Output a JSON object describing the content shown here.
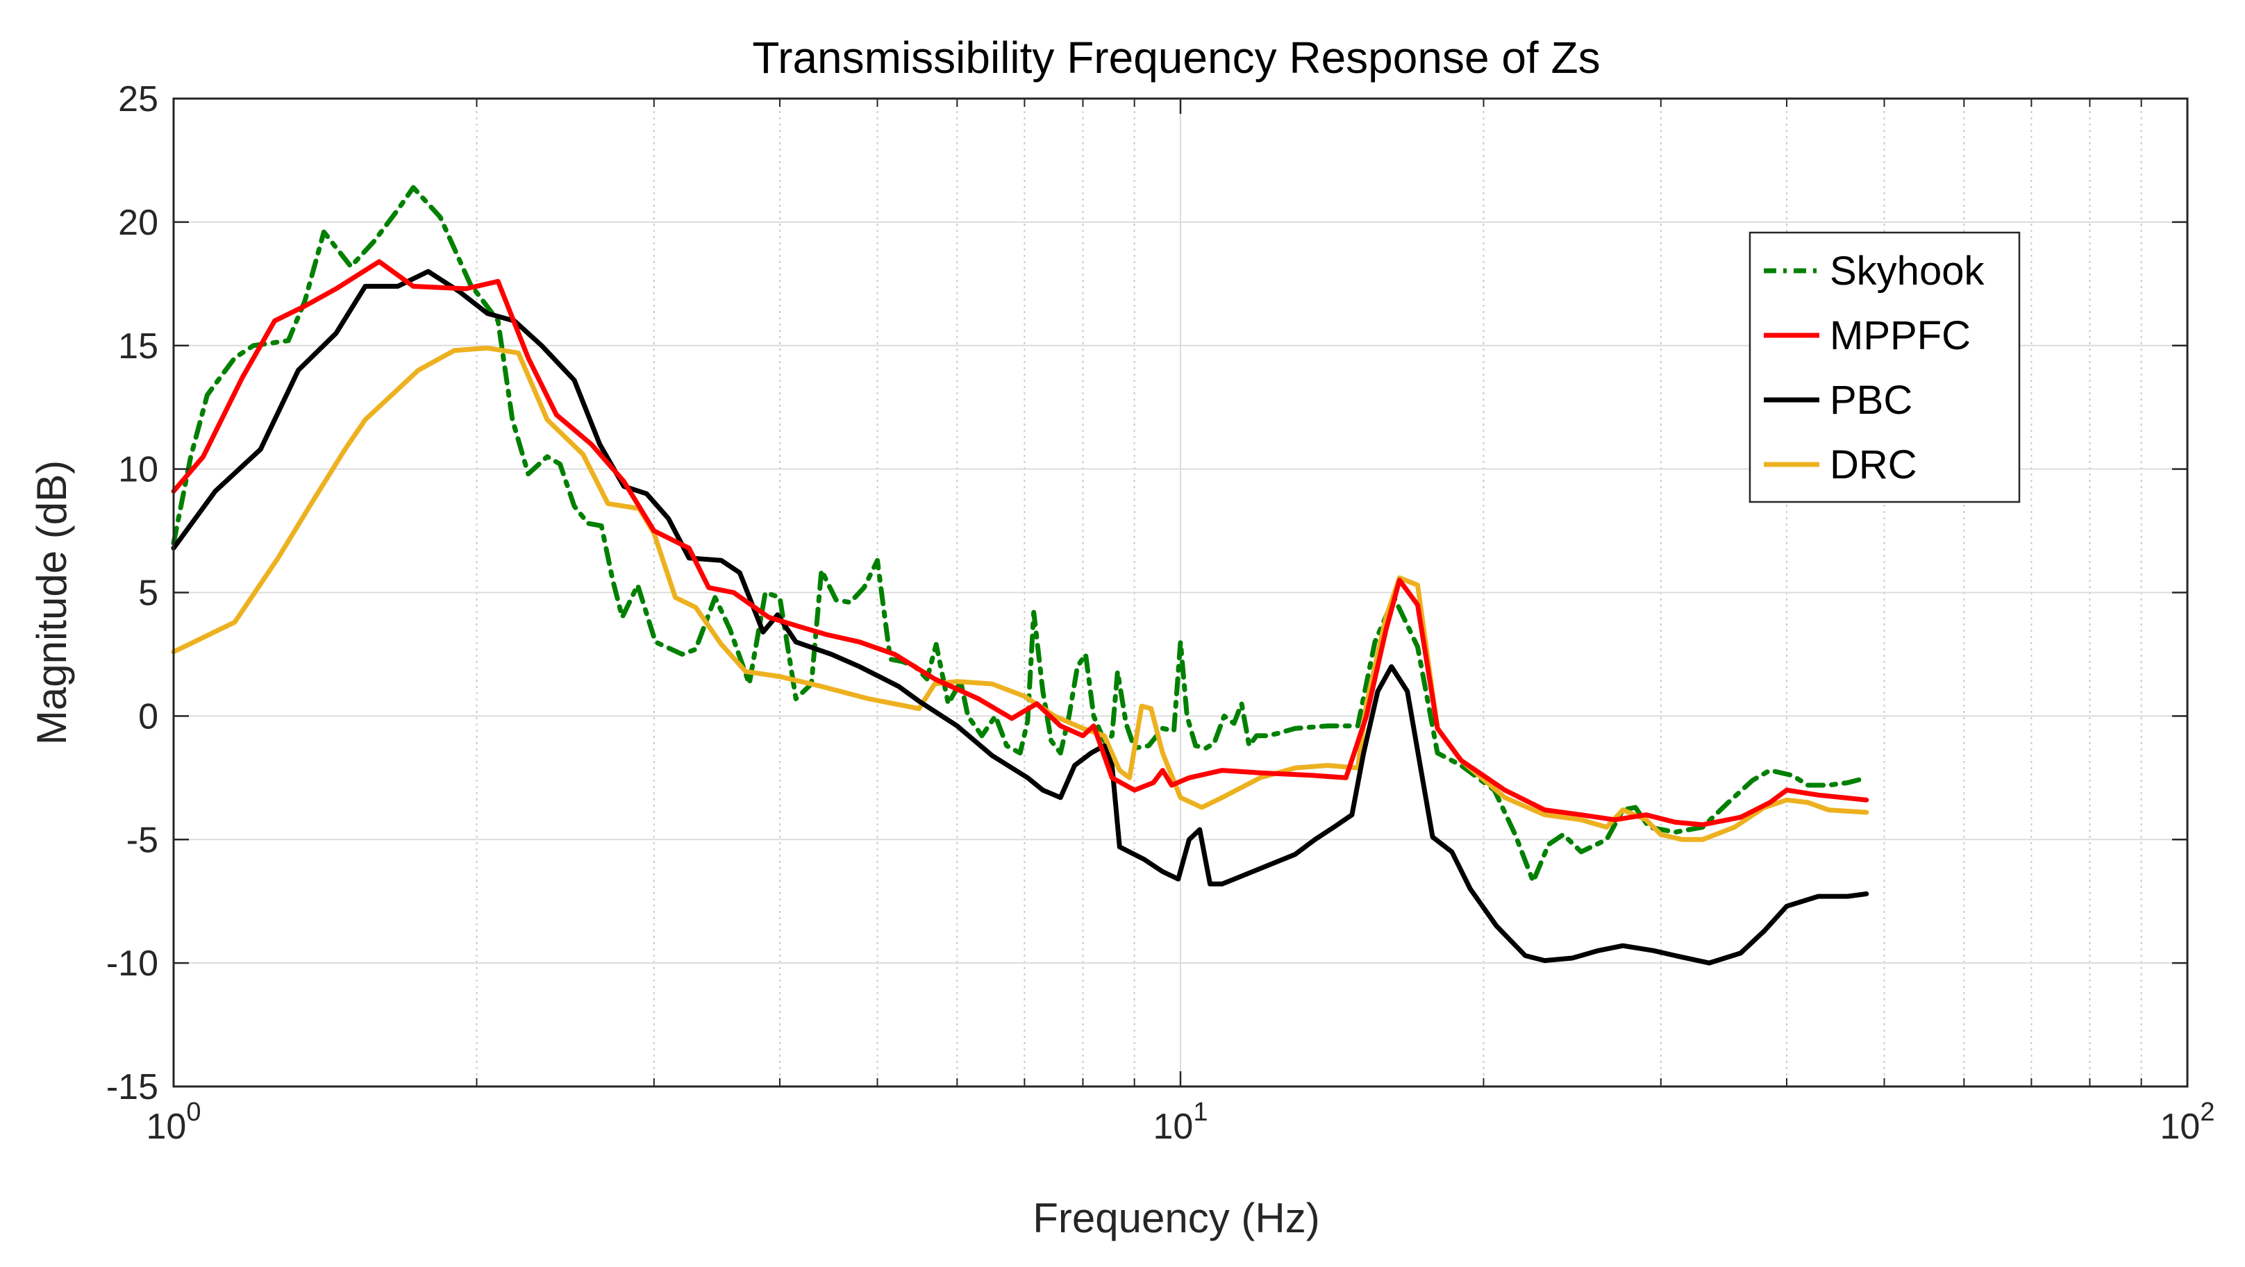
{
  "chart_data": {
    "type": "line",
    "title": "Transmissibility Frequency Response of Zs",
    "xlabel": "Frequency (Hz)",
    "ylabel": "Magnitude (dB)",
    "xscale": "log",
    "xlim": [
      1,
      100
    ],
    "ylim": [
      -15,
      25
    ],
    "grid": true,
    "legend_position": "top-right",
    "x_ticks": [
      {
        "value": 1,
        "base": "10",
        "exp": "0"
      },
      {
        "value": 10,
        "base": "10",
        "exp": "1"
      },
      {
        "value": 100,
        "base": "10",
        "exp": "2"
      }
    ],
    "y_ticks": [
      {
        "value": 25,
        "label": "25"
      },
      {
        "value": 20,
        "label": "20"
      },
      {
        "value": 15,
        "label": "15"
      },
      {
        "value": 10,
        "label": "10"
      },
      {
        "value": 5,
        "label": "5"
      },
      {
        "value": 0,
        "label": "0"
      },
      {
        "value": -5,
        "label": "-5"
      },
      {
        "value": -10,
        "label": "-10"
      },
      {
        "value": -15,
        "label": "-15"
      }
    ],
    "series": [
      {
        "name": "Skyhook",
        "color": "#008000",
        "style": "dashdot",
        "points": [
          [
            1.0,
            7.0
          ],
          [
            1.04,
            10.5
          ],
          [
            1.08,
            13.0
          ],
          [
            1.15,
            14.5
          ],
          [
            1.2,
            15.0
          ],
          [
            1.3,
            15.2
          ],
          [
            1.35,
            16.8
          ],
          [
            1.41,
            19.6
          ],
          [
            1.5,
            18.2
          ],
          [
            1.58,
            19.2
          ],
          [
            1.67,
            20.5
          ],
          [
            1.73,
            21.4
          ],
          [
            1.84,
            20.2
          ],
          [
            1.97,
            17.5
          ],
          [
            2.1,
            16.0
          ],
          [
            2.17,
            12.0
          ],
          [
            2.25,
            9.8
          ],
          [
            2.35,
            10.5
          ],
          [
            2.42,
            10.2
          ],
          [
            2.5,
            8.5
          ],
          [
            2.58,
            7.8
          ],
          [
            2.66,
            7.7
          ],
          [
            2.73,
            5.5
          ],
          [
            2.79,
            4.0
          ],
          [
            2.89,
            5.3
          ],
          [
            3.01,
            3.0
          ],
          [
            3.2,
            2.5
          ],
          [
            3.3,
            2.7
          ],
          [
            3.45,
            4.8
          ],
          [
            3.57,
            3.5
          ],
          [
            3.73,
            1.3
          ],
          [
            3.87,
            5.0
          ],
          [
            4.0,
            4.8
          ],
          [
            4.15,
            0.7
          ],
          [
            4.3,
            1.3
          ],
          [
            4.4,
            5.9
          ],
          [
            4.55,
            4.7
          ],
          [
            4.7,
            4.6
          ],
          [
            4.85,
            5.2
          ],
          [
            5.0,
            6.3
          ],
          [
            5.15,
            2.3
          ],
          [
            5.3,
            2.2
          ],
          [
            5.45,
            2.0
          ],
          [
            5.6,
            1.5
          ],
          [
            5.72,
            2.9
          ],
          [
            5.88,
            0.5
          ],
          [
            6.05,
            1.4
          ],
          [
            6.15,
            0.0
          ],
          [
            6.35,
            -0.8
          ],
          [
            6.55,
            0.0
          ],
          [
            6.72,
            -1.2
          ],
          [
            6.93,
            -1.5
          ],
          [
            7.05,
            -0.2
          ],
          [
            7.15,
            4.2
          ],
          [
            7.3,
            1.0
          ],
          [
            7.44,
            -1.0
          ],
          [
            7.6,
            -1.5
          ],
          [
            7.75,
            0.0
          ],
          [
            7.9,
            2.0
          ],
          [
            8.05,
            2.5
          ],
          [
            8.2,
            0.0
          ],
          [
            8.4,
            -1.0
          ],
          [
            8.55,
            -0.8
          ],
          [
            8.66,
            1.8
          ],
          [
            8.83,
            -0.3
          ],
          [
            9.0,
            -1.3
          ],
          [
            9.3,
            -1.2
          ],
          [
            9.6,
            -0.5
          ],
          [
            9.85,
            -0.6
          ],
          [
            10.0,
            3.0
          ],
          [
            10.15,
            0.0
          ],
          [
            10.35,
            -1.2
          ],
          [
            10.6,
            -1.3
          ],
          [
            10.8,
            -1.1
          ],
          [
            11.05,
            0.0
          ],
          [
            11.3,
            -0.3
          ],
          [
            11.5,
            0.5
          ],
          [
            11.7,
            -1.2
          ],
          [
            11.9,
            -0.8
          ],
          [
            12.2,
            -0.8
          ],
          [
            12.5,
            -0.7
          ],
          [
            13.0,
            -0.5
          ],
          [
            14.0,
            -0.4
          ],
          [
            15.0,
            -0.4
          ],
          [
            15.6,
            3.0
          ],
          [
            16.3,
            4.8
          ],
          [
            17.2,
            2.8
          ],
          [
            18.0,
            -1.5
          ],
          [
            19.0,
            -2.0
          ],
          [
            20.5,
            -3.0
          ],
          [
            21.5,
            -4.8
          ],
          [
            22.4,
            -6.7
          ],
          [
            23.2,
            -5.2
          ],
          [
            24.0,
            -4.8
          ],
          [
            25.0,
            -5.5
          ],
          [
            26.5,
            -5.0
          ],
          [
            27.5,
            -3.8
          ],
          [
            28.3,
            -3.7
          ],
          [
            29.2,
            -4.5
          ],
          [
            31.0,
            -4.7
          ],
          [
            33.0,
            -4.5
          ],
          [
            35.0,
            -3.5
          ],
          [
            37.0,
            -2.6
          ],
          [
            38.5,
            -2.2
          ],
          [
            40.5,
            -2.4
          ],
          [
            42.0,
            -2.8
          ],
          [
            44.0,
            -2.8
          ],
          [
            46.0,
            -2.7
          ],
          [
            48.0,
            -2.5
          ]
        ]
      },
      {
        "name": "MPPFC",
        "color": "#ff0000",
        "style": "solid",
        "points": [
          [
            1.0,
            9.1
          ],
          [
            1.07,
            10.5
          ],
          [
            1.17,
            13.7
          ],
          [
            1.26,
            16.0
          ],
          [
            1.35,
            16.6
          ],
          [
            1.45,
            17.3
          ],
          [
            1.6,
            18.4
          ],
          [
            1.73,
            17.4
          ],
          [
            1.95,
            17.3
          ],
          [
            2.1,
            17.6
          ],
          [
            2.25,
            14.5
          ],
          [
            2.4,
            12.2
          ],
          [
            2.6,
            11.0
          ],
          [
            2.8,
            9.5
          ],
          [
            3.0,
            7.5
          ],
          [
            3.25,
            6.8
          ],
          [
            3.4,
            5.2
          ],
          [
            3.6,
            5.0
          ],
          [
            3.9,
            4.0
          ],
          [
            4.2,
            3.6
          ],
          [
            4.45,
            3.3
          ],
          [
            4.8,
            3.0
          ],
          [
            5.2,
            2.5
          ],
          [
            5.7,
            1.5
          ],
          [
            6.3,
            0.7
          ],
          [
            6.8,
            -0.1
          ],
          [
            7.2,
            0.5
          ],
          [
            7.6,
            -0.4
          ],
          [
            8.0,
            -0.8
          ],
          [
            8.2,
            -0.4
          ],
          [
            8.55,
            -2.5
          ],
          [
            9.0,
            -3.0
          ],
          [
            9.4,
            -2.7
          ],
          [
            9.6,
            -2.2
          ],
          [
            9.8,
            -2.8
          ],
          [
            10.2,
            -2.5
          ],
          [
            11.0,
            -2.2
          ],
          [
            12.0,
            -2.3
          ],
          [
            13.5,
            -2.4
          ],
          [
            14.6,
            -2.5
          ],
          [
            15.3,
            0.0
          ],
          [
            16.0,
            3.5
          ],
          [
            16.5,
            5.5
          ],
          [
            17.2,
            4.5
          ],
          [
            18.0,
            -0.5
          ],
          [
            19.0,
            -1.8
          ],
          [
            21.0,
            -3.0
          ],
          [
            23.0,
            -3.8
          ],
          [
            25.0,
            -4.0
          ],
          [
            27.0,
            -4.2
          ],
          [
            29.0,
            -4.0
          ],
          [
            31.0,
            -4.3
          ],
          [
            33.0,
            -4.4
          ],
          [
            36.0,
            -4.1
          ],
          [
            38.5,
            -3.5
          ],
          [
            40.0,
            -3.0
          ],
          [
            43.0,
            -3.2
          ],
          [
            48.0,
            -3.4
          ]
        ]
      },
      {
        "name": "PBC",
        "color": "#000000",
        "style": "solid",
        "points": [
          [
            1.0,
            6.8
          ],
          [
            1.1,
            9.1
          ],
          [
            1.22,
            10.8
          ],
          [
            1.33,
            14.0
          ],
          [
            1.45,
            15.5
          ],
          [
            1.55,
            17.4
          ],
          [
            1.67,
            17.4
          ],
          [
            1.79,
            18.0
          ],
          [
            1.92,
            17.2
          ],
          [
            2.05,
            16.3
          ],
          [
            2.18,
            16.0
          ],
          [
            2.32,
            15.0
          ],
          [
            2.5,
            13.6
          ],
          [
            2.65,
            11.0
          ],
          [
            2.8,
            9.3
          ],
          [
            2.95,
            9.0
          ],
          [
            3.1,
            8.0
          ],
          [
            3.25,
            6.4
          ],
          [
            3.5,
            6.3
          ],
          [
            3.65,
            5.8
          ],
          [
            3.85,
            3.4
          ],
          [
            3.98,
            4.1
          ],
          [
            4.15,
            3.0
          ],
          [
            4.5,
            2.5
          ],
          [
            4.8,
            2.0
          ],
          [
            5.25,
            1.2
          ],
          [
            5.5,
            0.6
          ],
          [
            6.0,
            -0.4
          ],
          [
            6.5,
            -1.6
          ],
          [
            7.05,
            -2.5
          ],
          [
            7.3,
            -3.0
          ],
          [
            7.6,
            -3.3
          ],
          [
            7.85,
            -2.0
          ],
          [
            8.15,
            -1.5
          ],
          [
            8.4,
            -1.2
          ],
          [
            8.55,
            -2.0
          ],
          [
            8.7,
            -5.3
          ],
          [
            9.2,
            -5.8
          ],
          [
            9.6,
            -6.3
          ],
          [
            9.95,
            -6.6
          ],
          [
            10.2,
            -5.0
          ],
          [
            10.45,
            -4.6
          ],
          [
            10.7,
            -6.8
          ],
          [
            11.0,
            -6.8
          ],
          [
            12.3,
            -6.0
          ],
          [
            13.0,
            -5.6
          ],
          [
            13.6,
            -5.0
          ],
          [
            14.2,
            -4.5
          ],
          [
            14.8,
            -4.0
          ],
          [
            15.2,
            -1.5
          ],
          [
            15.7,
            1.0
          ],
          [
            16.2,
            2.0
          ],
          [
            16.8,
            1.0
          ],
          [
            17.3,
            -2.0
          ],
          [
            17.8,
            -4.9
          ],
          [
            18.6,
            -5.5
          ],
          [
            19.4,
            -7.0
          ],
          [
            20.6,
            -8.5
          ],
          [
            22.0,
            -9.7
          ],
          [
            23.0,
            -9.9
          ],
          [
            24.5,
            -9.8
          ],
          [
            26.0,
            -9.5
          ],
          [
            27.5,
            -9.3
          ],
          [
            29.5,
            -9.5
          ],
          [
            31.0,
            -9.7
          ],
          [
            33.5,
            -10.0
          ],
          [
            36.0,
            -9.6
          ],
          [
            38.0,
            -8.7
          ],
          [
            40.0,
            -7.7
          ],
          [
            43.0,
            -7.3
          ],
          [
            46.0,
            -7.3
          ],
          [
            48.0,
            -7.2
          ]
        ]
      },
      {
        "name": "DRC",
        "color": "#edb120",
        "style": "solid",
        "points": [
          [
            1.0,
            2.6
          ],
          [
            1.15,
            3.8
          ],
          [
            1.27,
            6.4
          ],
          [
            1.37,
            8.6
          ],
          [
            1.48,
            10.8
          ],
          [
            1.55,
            12.0
          ],
          [
            1.75,
            14.0
          ],
          [
            1.9,
            14.8
          ],
          [
            2.05,
            14.9
          ],
          [
            2.2,
            14.7
          ],
          [
            2.35,
            12.0
          ],
          [
            2.55,
            10.6
          ],
          [
            2.7,
            8.6
          ],
          [
            2.9,
            8.4
          ],
          [
            3.0,
            7.4
          ],
          [
            3.15,
            4.8
          ],
          [
            3.3,
            4.4
          ],
          [
            3.5,
            2.9
          ],
          [
            3.7,
            1.8
          ],
          [
            4.0,
            1.6
          ],
          [
            4.4,
            1.2
          ],
          [
            4.9,
            0.7
          ],
          [
            5.5,
            0.3
          ],
          [
            5.7,
            1.3
          ],
          [
            6.0,
            1.4
          ],
          [
            6.5,
            1.3
          ],
          [
            7.0,
            0.8
          ],
          [
            7.5,
            0.0
          ],
          [
            8.0,
            -0.5
          ],
          [
            8.4,
            -0.8
          ],
          [
            8.7,
            -2.2
          ],
          [
            8.9,
            -2.5
          ],
          [
            9.15,
            0.4
          ],
          [
            9.35,
            0.3
          ],
          [
            9.6,
            -1.5
          ],
          [
            10.0,
            -3.3
          ],
          [
            10.5,
            -3.7
          ],
          [
            11.0,
            -3.3
          ],
          [
            12.0,
            -2.5
          ],
          [
            13.0,
            -2.1
          ],
          [
            14.0,
            -2.0
          ],
          [
            15.0,
            -2.1
          ],
          [
            15.3,
            0.5
          ],
          [
            16.0,
            4.0
          ],
          [
            16.5,
            5.6
          ],
          [
            17.2,
            5.3
          ],
          [
            18.0,
            -0.5
          ],
          [
            19.0,
            -1.8
          ],
          [
            21.0,
            -3.3
          ],
          [
            23.0,
            -4.0
          ],
          [
            25.0,
            -4.2
          ],
          [
            26.5,
            -4.5
          ],
          [
            27.5,
            -3.8
          ],
          [
            29.0,
            -4.2
          ],
          [
            30.0,
            -4.8
          ],
          [
            31.5,
            -5.0
          ],
          [
            33.0,
            -5.0
          ],
          [
            35.5,
            -4.5
          ],
          [
            38.0,
            -3.7
          ],
          [
            40.0,
            -3.4
          ],
          [
            42.0,
            -3.5
          ],
          [
            44.0,
            -3.8
          ],
          [
            48.0,
            -3.9
          ]
        ]
      }
    ]
  }
}
